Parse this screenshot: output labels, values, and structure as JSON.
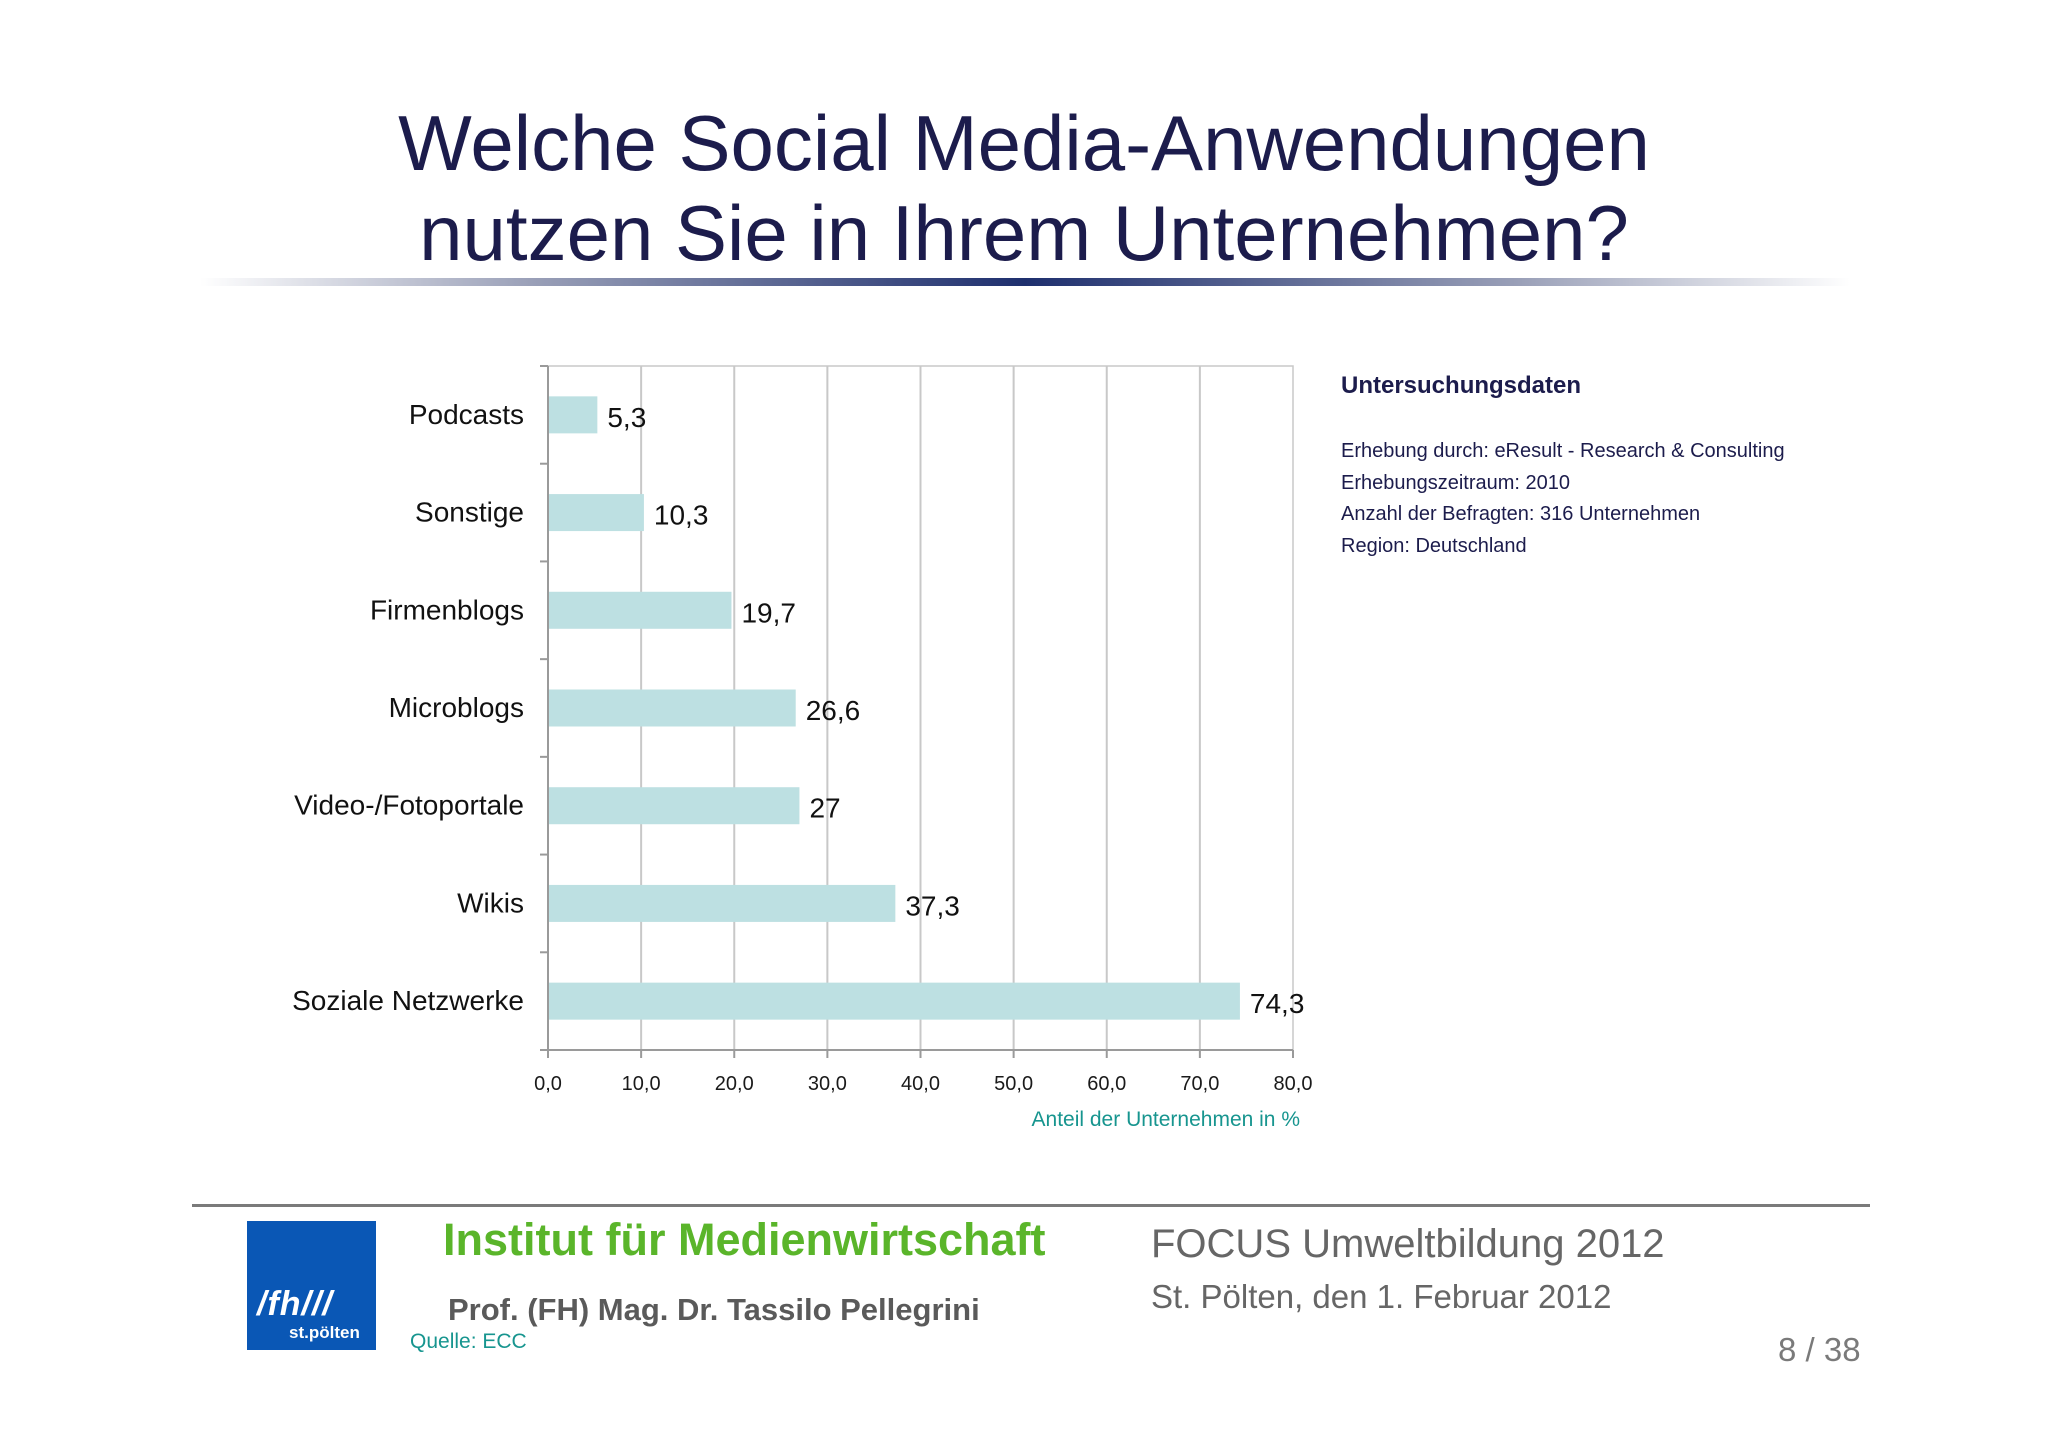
{
  "slide": {
    "title_line1": "Welche Social Media-Anwendungen",
    "title_line2": "nutzen Sie in Ihrem Unternehmen?"
  },
  "chart_data": {
    "type": "bar",
    "orientation": "horizontal",
    "categories": [
      "Podcasts",
      "Sonstige",
      "Firmenblogs",
      "Microblogs",
      "Video-/Fotoportale",
      "Wikis",
      "Soziale Netzwerke"
    ],
    "values": [
      5.3,
      10.3,
      19.7,
      26.6,
      27,
      37.3,
      74.3
    ],
    "value_labels": [
      "5,3",
      "10,3",
      "19,7",
      "26,6",
      "27",
      "37,3",
      "74,3"
    ],
    "xlim": [
      0,
      80
    ],
    "x_ticks": [
      0,
      10,
      20,
      30,
      40,
      50,
      60,
      70,
      80
    ],
    "x_tick_labels": [
      "0,0",
      "10,0",
      "20,0",
      "30,0",
      "40,0",
      "50,0",
      "60,0",
      "70,0",
      "80,0"
    ],
    "xlabel": "Anteil der Unternehmen in %",
    "grid": "vertical",
    "bar_color": "#bde0e2",
    "xlabel_color": "#17958f"
  },
  "info": {
    "title": "Untersuchungsdaten",
    "lines": [
      "Erhebung durch: eResult - Research & Consulting",
      "Erhebungszeitraum: 2010",
      "Anzahl der Befragten: 316 Unternehmen",
      "Region: Deutschland"
    ]
  },
  "footer": {
    "logo_text": "/fh///",
    "logo_sub": "st.pölten",
    "institute": "Institut für Medienwirtschaft",
    "author": "Prof. (FH) Mag. Dr. Tassilo Pellegrini",
    "source": "Quelle: ECC",
    "event": "FOCUS Umweltbildung 2012",
    "date": "St. Pölten, den 1. Februar 2012",
    "page": "8 / 38"
  },
  "colors": {
    "title": "#1c1c4c",
    "institute": "#5ab52a",
    "logo_bg": "#0a57b5"
  }
}
